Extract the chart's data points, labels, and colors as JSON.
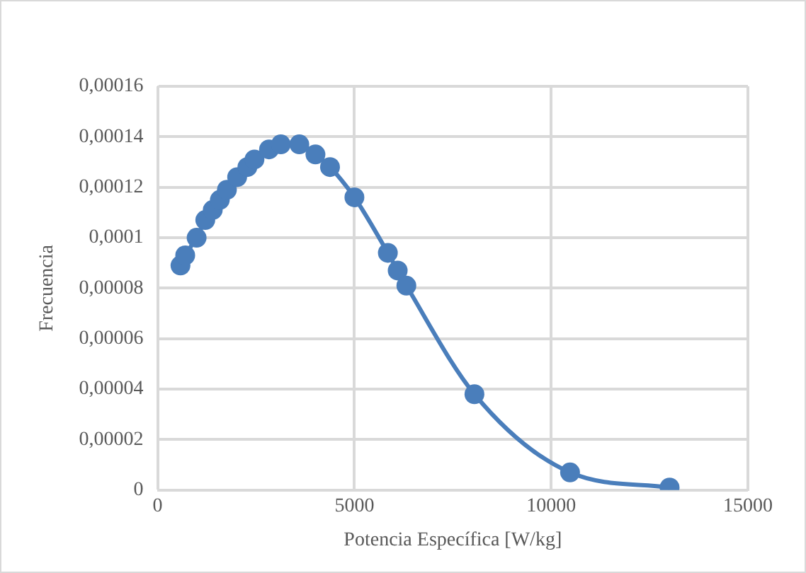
{
  "chart_data": {
    "type": "line",
    "xlabel": "Potencia Específica [W/kg]",
    "ylabel": "Frecuencia",
    "xlim": [
      0,
      15000
    ],
    "xticks": [
      0,
      5000,
      10000,
      15000
    ],
    "ylim": [
      0,
      0.00016
    ],
    "yticks": [
      {
        "value": 0,
        "label": "0"
      },
      {
        "value": 2e-05,
        "label": "0,00002"
      },
      {
        "value": 4e-05,
        "label": "0,00004"
      },
      {
        "value": 6e-05,
        "label": "0,00006"
      },
      {
        "value": 8e-05,
        "label": "0,00008"
      },
      {
        "value": 0.0001,
        "label": "0,0001"
      },
      {
        "value": 0.00012,
        "label": "0,00012"
      },
      {
        "value": 0.00014,
        "label": "0,00014"
      },
      {
        "value": 0.00016,
        "label": "0,00016"
      }
    ],
    "grid": true,
    "legend": false,
    "marker": "circle",
    "line_style": "solid",
    "series": [
      {
        "color": "#4a7ebb",
        "x": [
          580,
          700,
          990,
          1210,
          1400,
          1580,
          1760,
          2020,
          2280,
          2460,
          2830,
          3130,
          3600,
          4010,
          4380,
          5000,
          5850,
          6100,
          6320,
          8050,
          10480,
          13010
        ],
        "values": [
          8.9e-05,
          9.3e-05,
          0.0001,
          0.000107,
          0.000111,
          0.000115,
          0.000119,
          0.000124,
          0.000128,
          0.000131,
          0.000135,
          0.000137,
          0.000137,
          0.000133,
          0.000128,
          0.000116,
          9.4e-05,
          8.7e-05,
          8.1e-05,
          3.8e-05,
          7e-06,
          1e-06
        ]
      }
    ]
  }
}
